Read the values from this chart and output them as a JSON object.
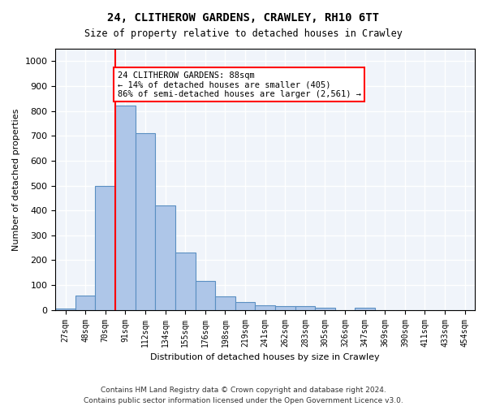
{
  "title1": "24, CLITHEROW GARDENS, CRAWLEY, RH10 6TT",
  "title2": "Size of property relative to detached houses in Crawley",
  "xlabel": "Distribution of detached houses by size in Crawley",
  "ylabel": "Number of detached properties",
  "bar_labels": [
    "27sqm",
    "48sqm",
    "70sqm",
    "91sqm",
    "112sqm",
    "134sqm",
    "155sqm",
    "176sqm",
    "198sqm",
    "219sqm",
    "241sqm",
    "262sqm",
    "283sqm",
    "305sqm",
    "326sqm",
    "347sqm",
    "369sqm",
    "390sqm",
    "411sqm",
    "433sqm",
    "454sqm"
  ],
  "bar_values": [
    5,
    57,
    500,
    820,
    710,
    420,
    230,
    117,
    55,
    33,
    17,
    14,
    14,
    8,
    0,
    10,
    0,
    0,
    0,
    0,
    0
  ],
  "bar_color": "#aec6e8",
  "bar_edge_color": "#5a8fc2",
  "vline_x": 3,
  "vline_color": "red",
  "annotation_text": "24 CLITHEROW GARDENS: 88sqm\n← 14% of detached houses are smaller (405)\n86% of semi-detached houses are larger (2,561) →",
  "annotation_box_color": "white",
  "annotation_box_edge": "red",
  "ylim": [
    0,
    1050
  ],
  "footer1": "Contains HM Land Registry data © Crown copyright and database right 2024.",
  "footer2": "Contains public sector information licensed under the Open Government Licence v3.0.",
  "bg_color": "#f0f4fa"
}
